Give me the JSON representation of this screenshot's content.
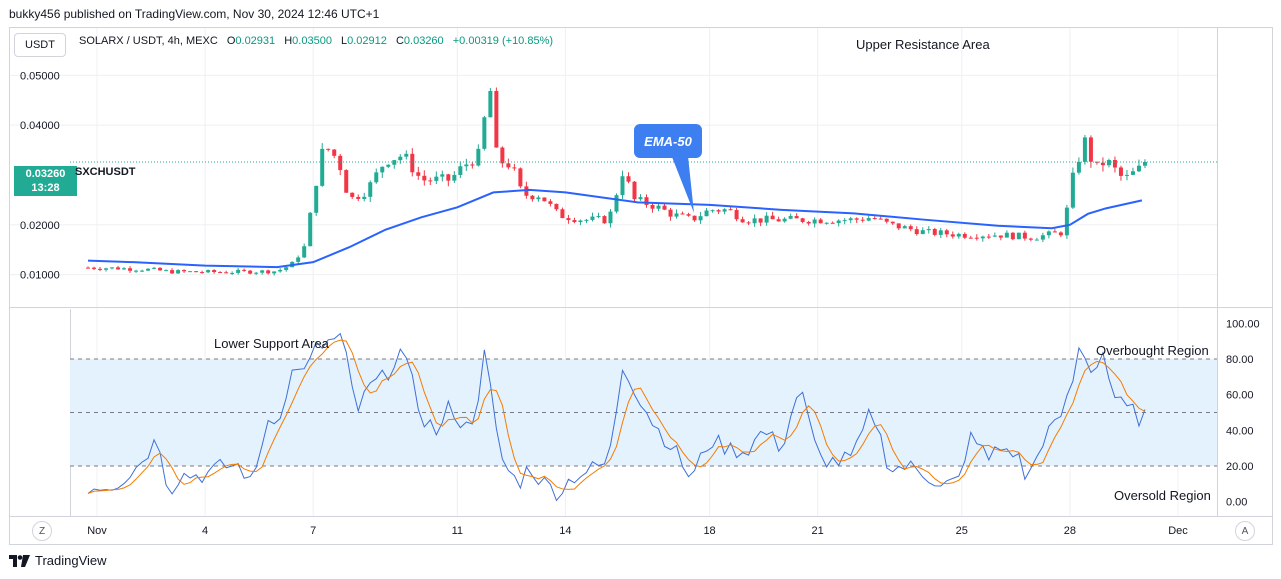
{
  "header": {
    "publisher_line": "bukky456 published on TradingView.com, Nov 30, 2024 12:46 UTC+1"
  },
  "toolbar": {
    "currency_button": "USDT"
  },
  "legend": {
    "symbol": "SOLARX / USDT, 4h, MEXC",
    "open_label": "O",
    "open": "0.02931",
    "high_label": "H",
    "high": "0.03500",
    "low_label": "L",
    "low": "0.02912",
    "close_label": "C",
    "close": "0.03260",
    "change": "+0.00319 (+10.85%)"
  },
  "annotations": {
    "upper_resistance": "Upper Resistance Area",
    "lower_support": "Lower Support Area",
    "overbought": "Overbought Region",
    "oversold": "Oversold Region",
    "ema_callout": "EMA-50"
  },
  "price_badge": {
    "price": "0.03260",
    "countdown": "13:28",
    "symbol": "SXCHUSDT"
  },
  "footer": {
    "brand": "TradingView",
    "left_button": "Z",
    "right_button": "A"
  },
  "colors": {
    "up": "#22ab94",
    "down": "#f23645",
    "ema": "#2962ff",
    "rsi": "#3f6fd8",
    "rsi_ma": "#f57c00",
    "band": "#e3f2fd"
  },
  "chart_data": [
    {
      "type": "candlestick",
      "title": "SOLARX / USDT, 4h, MEXC",
      "ylim": [
        0.0035,
        0.0595
      ],
      "yticks": [
        0.01,
        0.02,
        0.04,
        0.05
      ],
      "ytick_labels": [
        "0.01000",
        "0.02000",
        "0.04000",
        "0.05000"
      ],
      "x_tick_labels": [
        {
          "day": 1,
          "label": "Nov"
        },
        {
          "day": 4,
          "label": "4"
        },
        {
          "day": 7,
          "label": "7"
        },
        {
          "day": 11,
          "label": "11"
        },
        {
          "day": 14,
          "label": "14"
        },
        {
          "day": 18,
          "label": "18"
        },
        {
          "day": 21,
          "label": "21"
        },
        {
          "day": 25,
          "label": "25"
        },
        {
          "day": 28,
          "label": "28"
        },
        {
          "day": 31,
          "label": "Dec"
        }
      ],
      "price_keys": [
        [
          0.0,
          0.0115
        ],
        [
          1.5,
          0.0113
        ],
        [
          2.5,
          0.011
        ],
        [
          3.0,
          0.0106
        ],
        [
          4.5,
          0.0105
        ],
        [
          6.0,
          0.0107
        ],
        [
          6.4,
          0.012
        ],
        [
          6.8,
          0.016
        ],
        [
          7.0,
          0.026
        ],
        [
          7.3,
          0.036
        ],
        [
          7.7,
          0.033
        ],
        [
          8.0,
          0.025
        ],
        [
          8.5,
          0.027
        ],
        [
          9.0,
          0.033
        ],
        [
          9.5,
          0.034
        ],
        [
          10.0,
          0.029
        ],
        [
          10.8,
          0.029
        ],
        [
          11.2,
          0.032
        ],
        [
          11.6,
          0.034
        ],
        [
          11.9,
          0.048
        ],
        [
          12.1,
          0.033
        ],
        [
          12.5,
          0.032
        ],
        [
          12.8,
          0.026
        ],
        [
          13.3,
          0.026
        ],
        [
          13.8,
          0.022
        ],
        [
          14.5,
          0.021
        ],
        [
          15.2,
          0.021
        ],
        [
          15.6,
          0.031
        ],
        [
          15.9,
          0.025
        ],
        [
          16.4,
          0.024
        ],
        [
          17.0,
          0.022
        ],
        [
          17.5,
          0.021
        ],
        [
          18.0,
          0.023
        ],
        [
          18.5,
          0.023
        ],
        [
          19.0,
          0.021
        ],
        [
          20.0,
          0.021
        ],
        [
          21.0,
          0.021
        ],
        [
          22.0,
          0.021
        ],
        [
          22.5,
          0.0215
        ],
        [
          23.0,
          0.02
        ],
        [
          24.0,
          0.0185
        ],
        [
          25.0,
          0.018
        ],
        [
          26.0,
          0.018
        ],
        [
          27.0,
          0.0175
        ],
        [
          27.8,
          0.0185
        ],
        [
          28.1,
          0.03
        ],
        [
          28.4,
          0.037
        ],
        [
          28.7,
          0.031
        ],
        [
          29.0,
          0.033
        ],
        [
          29.5,
          0.029
        ],
        [
          30.2,
          0.0326
        ]
      ],
      "ema_label": "EMA-50",
      "ema_points": [
        [
          0.0,
          0.013
        ],
        [
          2.0,
          0.0125
        ],
        [
          4.0,
          0.0118
        ],
        [
          6.0,
          0.0115
        ],
        [
          7.0,
          0.0125
        ],
        [
          8.0,
          0.0155
        ],
        [
          9.0,
          0.019
        ],
        [
          10.0,
          0.0215
        ],
        [
          11.0,
          0.0235
        ],
        [
          12.0,
          0.0265
        ],
        [
          13.0,
          0.027
        ],
        [
          14.0,
          0.0265
        ],
        [
          15.0,
          0.0255
        ],
        [
          16.0,
          0.0245
        ],
        [
          18.0,
          0.024
        ],
        [
          20.0,
          0.023
        ],
        [
          22.0,
          0.0223
        ],
        [
          24.0,
          0.021
        ],
        [
          26.0,
          0.0198
        ],
        [
          27.5,
          0.0193
        ],
        [
          28.0,
          0.02
        ],
        [
          28.5,
          0.0222
        ],
        [
          29.0,
          0.0233
        ],
        [
          30.0,
          0.0249
        ]
      ],
      "last_price": 0.0326
    },
    {
      "type": "line",
      "title": "RSI",
      "ylim": [
        -8,
        108
      ],
      "yticks": [
        0,
        20,
        40,
        60,
        80,
        100
      ],
      "ytick_labels": [
        "0.00",
        "20.00",
        "40.00",
        "60.00",
        "80.00",
        "100.00"
      ],
      "band": [
        20,
        80
      ],
      "midline": 50,
      "rsi_keys": [
        [
          0,
          15
        ],
        [
          0.7,
          8
        ],
        [
          1.5,
          10
        ],
        [
          2,
          17
        ],
        [
          2.7,
          36
        ],
        [
          3,
          5
        ],
        [
          3.3,
          15
        ],
        [
          4,
          15
        ],
        [
          4.5,
          20
        ],
        [
          5,
          20
        ],
        [
          5.3,
          8
        ],
        [
          5.7,
          45
        ],
        [
          6.2,
          52
        ],
        [
          6.5,
          80
        ],
        [
          6.8,
          70
        ],
        [
          7,
          85
        ],
        [
          7.5,
          90
        ],
        [
          7.8,
          92
        ],
        [
          8.2,
          50
        ],
        [
          8.6,
          65
        ],
        [
          9,
          70
        ],
        [
          9.4,
          85
        ],
        [
          9.7,
          70
        ],
        [
          10,
          48
        ],
        [
          10.5,
          38
        ],
        [
          10.8,
          55
        ],
        [
          11.2,
          40
        ],
        [
          11.5,
          50
        ],
        [
          11.8,
          88
        ],
        [
          12,
          45
        ],
        [
          12.3,
          20
        ],
        [
          12.7,
          10
        ],
        [
          13,
          20
        ],
        [
          13.3,
          12
        ],
        [
          13.8,
          5
        ],
        [
          14.2,
          14
        ],
        [
          14.7,
          18
        ],
        [
          15.2,
          22
        ],
        [
          15.6,
          78
        ],
        [
          16,
          60
        ],
        [
          16.5,
          42
        ],
        [
          17,
          30
        ],
        [
          17.5,
          12
        ],
        [
          18,
          35
        ],
        [
          18.5,
          30
        ],
        [
          19,
          28
        ],
        [
          19.5,
          40
        ],
        [
          20,
          30
        ],
        [
          20.5,
          65
        ],
        [
          21,
          25
        ],
        [
          21.5,
          22
        ],
        [
          22,
          25
        ],
        [
          22.5,
          52
        ],
        [
          23,
          18
        ],
        [
          23.5,
          20
        ],
        [
          24,
          15
        ],
        [
          24.5,
          10
        ],
        [
          25,
          12
        ],
        [
          25.3,
          42
        ],
        [
          25.7,
          22
        ],
        [
          26,
          30
        ],
        [
          26.5,
          28
        ],
        [
          26.8,
          12
        ],
        [
          27,
          20
        ],
        [
          27.3,
          38
        ],
        [
          27.6,
          42
        ],
        [
          28,
          60
        ],
        [
          28.3,
          90
        ],
        [
          28.6,
          72
        ],
        [
          28.9,
          85
        ],
        [
          29.2,
          60
        ],
        [
          29.5,
          52
        ],
        [
          29.8,
          50
        ],
        [
          30,
          45
        ],
        [
          30.2,
          53
        ]
      ]
    }
  ]
}
